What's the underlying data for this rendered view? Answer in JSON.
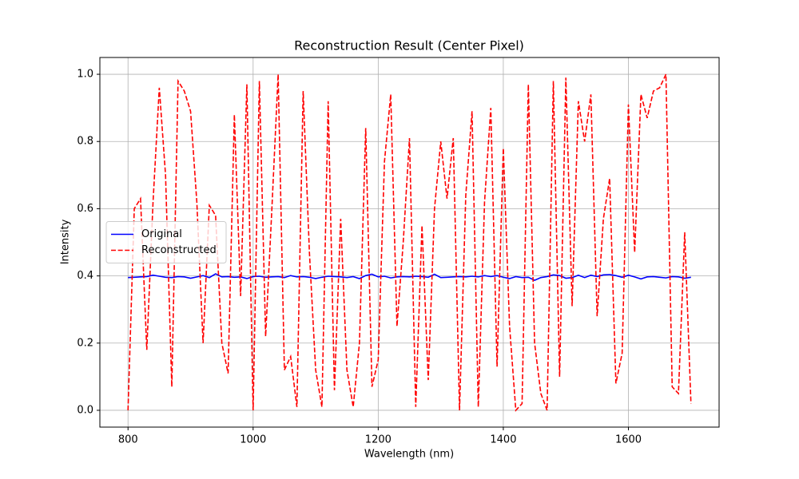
{
  "chart_data": {
    "type": "line",
    "title": "Reconstruction Result (Center Pixel)",
    "x_label": "Wavelength (nm)",
    "y_label": "Intensity",
    "x": [
      800,
      810,
      820,
      830,
      840,
      850,
      860,
      870,
      880,
      890,
      900,
      910,
      920,
      930,
      940,
      950,
      960,
      970,
      980,
      990,
      1000,
      1010,
      1020,
      1030,
      1040,
      1050,
      1060,
      1070,
      1080,
      1090,
      1100,
      1110,
      1120,
      1130,
      1140,
      1150,
      1160,
      1170,
      1180,
      1190,
      1200,
      1210,
      1220,
      1230,
      1240,
      1250,
      1260,
      1270,
      1280,
      1290,
      1300,
      1310,
      1320,
      1330,
      1340,
      1350,
      1360,
      1370,
      1380,
      1390,
      1400,
      1410,
      1420,
      1430,
      1440,
      1450,
      1460,
      1470,
      1480,
      1490,
      1500,
      1510,
      1520,
      1530,
      1540,
      1550,
      1560,
      1570,
      1580,
      1590,
      1600,
      1610,
      1620,
      1630,
      1640,
      1650,
      1660,
      1670,
      1680,
      1690,
      1700
    ],
    "series": [
      {
        "name": "Original",
        "color": "#0000ff",
        "dashed": false,
        "values": [
          0.395,
          0.396,
          0.397,
          0.398,
          0.402,
          0.399,
          0.396,
          0.395,
          0.398,
          0.397,
          0.393,
          0.397,
          0.401,
          0.395,
          0.406,
          0.397,
          0.398,
          0.396,
          0.397,
          0.392,
          0.398,
          0.399,
          0.396,
          0.397,
          0.398,
          0.395,
          0.401,
          0.397,
          0.398,
          0.396,
          0.392,
          0.396,
          0.399,
          0.398,
          0.397,
          0.395,
          0.398,
          0.392,
          0.401,
          0.405,
          0.397,
          0.399,
          0.394,
          0.397,
          0.398,
          0.397,
          0.399,
          0.398,
          0.396,
          0.405,
          0.395,
          0.396,
          0.397,
          0.398,
          0.397,
          0.399,
          0.397,
          0.401,
          0.398,
          0.401,
          0.396,
          0.392,
          0.398,
          0.395,
          0.396,
          0.387,
          0.395,
          0.398,
          0.403,
          0.401,
          0.393,
          0.395,
          0.402,
          0.395,
          0.402,
          0.398,
          0.403,
          0.404,
          0.401,
          0.396,
          0.402,
          0.397,
          0.391,
          0.397,
          0.398,
          0.396,
          0.394,
          0.398,
          0.397,
          0.393,
          0.396
        ]
      },
      {
        "name": "Reconstructed",
        "color": "#ff0000",
        "dashed": true,
        "values": [
          0.0,
          0.6,
          0.63,
          0.18,
          0.62,
          0.96,
          0.7,
          0.07,
          0.98,
          0.95,
          0.89,
          0.62,
          0.2,
          0.61,
          0.58,
          0.2,
          0.11,
          0.88,
          0.34,
          0.97,
          0.0,
          0.98,
          0.22,
          0.6,
          1.0,
          0.12,
          0.16,
          0.01,
          0.95,
          0.47,
          0.12,
          0.01,
          0.92,
          0.06,
          0.57,
          0.12,
          0.01,
          0.2,
          0.84,
          0.07,
          0.15,
          0.74,
          0.94,
          0.25,
          0.5,
          0.81,
          0.01,
          0.55,
          0.09,
          0.6,
          0.8,
          0.63,
          0.81,
          0.0,
          0.64,
          0.89,
          0.01,
          0.62,
          0.9,
          0.13,
          0.78,
          0.25,
          0.0,
          0.02,
          0.97,
          0.2,
          0.05,
          0.0,
          0.98,
          0.1,
          0.99,
          0.31,
          0.92,
          0.8,
          0.94,
          0.28,
          0.57,
          0.69,
          0.08,
          0.17,
          0.91,
          0.47,
          0.94,
          0.87,
          0.95,
          0.96,
          1.0,
          0.07,
          0.05,
          0.53,
          0.02
        ]
      }
    ],
    "xlim": [
      755,
      1745
    ],
    "xticks": [
      800,
      1000,
      1200,
      1400,
      1600
    ],
    "ylim": [
      -0.05,
      1.05
    ],
    "yticks": [
      {
        "value": 0,
        "label": "0.0"
      },
      0.2,
      0.4,
      0.6,
      0.8,
      {
        "value": 1,
        "label": "1.0"
      }
    ],
    "grid": true,
    "legend": "center left"
  }
}
